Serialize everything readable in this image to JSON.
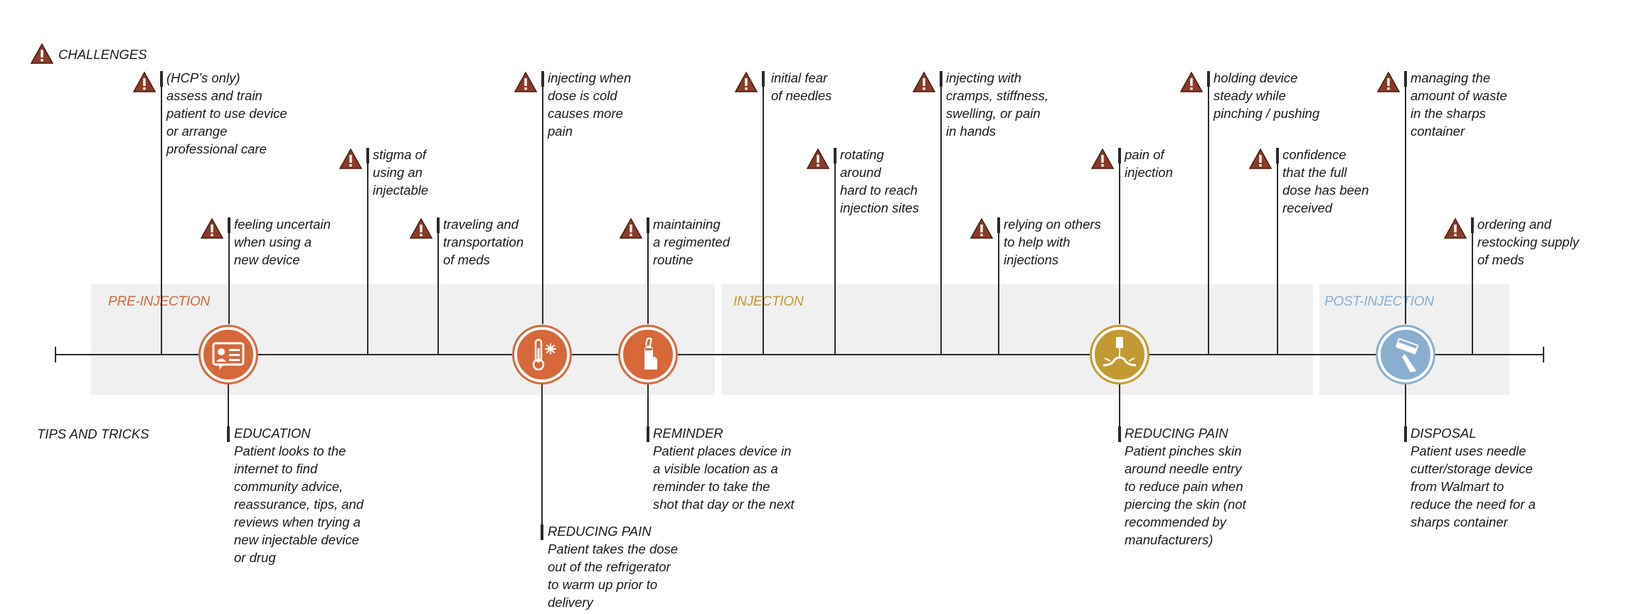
{
  "headings": {
    "challenges": "CHALLENGES",
    "tips_and_tricks": "TIPS AND TRICKS"
  },
  "phases": [
    {
      "label": "PRE-INJECTION",
      "color": "#d6683a"
    },
    {
      "label": "INJECTION",
      "color": "#c39a32"
    },
    {
      "label": "POST-INJECTION",
      "color": "#8aaed0"
    }
  ],
  "colors": {
    "pre_injection": "#d6683a",
    "injection": "#c39a32",
    "post_injection": "#8aaed0",
    "warning_fill": "#8a3b28",
    "band": "#f0f0f0"
  },
  "challenges": [
    {
      "text": "(HCP’s only)\nassess and train\npatient to use device\nor arrange\nprofessional care"
    },
    {
      "text": "feeling uncertain\nwhen using a\nnew device"
    },
    {
      "text": "stigma of\nusing an\ninjectable"
    },
    {
      "text": "traveling and\ntransportation\nof meds"
    },
    {
      "text": "injecting when\ndose is cold\ncauses more\npain"
    },
    {
      "text": "maintaining\na regimented\nroutine"
    },
    {
      "text": "initial fear\nof needles"
    },
    {
      "text": "rotating\naround\nhard to reach\ninjection sites"
    },
    {
      "text": "injecting with\ncramps, stiffness,\nswelling, or pain\nin hands"
    },
    {
      "text": "relying on others\nto help with\ninjections"
    },
    {
      "text": "pain of\ninjection"
    },
    {
      "text": "holding device\nsteady while\npinching / pushing"
    },
    {
      "text": "confidence\nthat the full\ndose has been\nreceived"
    },
    {
      "text": "managing the\namount of waste\nin the sharps\ncontainer"
    },
    {
      "text": "ordering and\nrestocking supply\nof meds"
    }
  ],
  "tips": [
    {
      "title": "EDUCATION",
      "body": "Patient looks to the\ninternet to find\ncommunity advice,\nreassurance, tips, and\nreviews when trying a\nnew injectable device\nor drug",
      "icon": "id-card-icon"
    },
    {
      "title": "REDUCING PAIN",
      "body": "Patient takes the dose\nout of the refrigerator\nto warm up prior to\ndelivery",
      "icon": "thermometer-snowflake-icon"
    },
    {
      "title": "REMINDER",
      "body": "Patient places device in\na visible location as a\nreminder to take the\nshot that day or the next",
      "icon": "finger-string-icon"
    },
    {
      "title": "REDUCING PAIN",
      "body": "Patient pinches skin\naround needle entry\nto reduce pain when\npiercing the skin (not\nrecommended by\nmanufacturers)",
      "icon": "needle-skin-icon"
    },
    {
      "title": "DISPOSAL",
      "body": "Patient uses needle\ncutter/storage device\nfrom Walmart to\nreduce the need for a\nsharps container",
      "icon": "needle-container-icon"
    }
  ]
}
